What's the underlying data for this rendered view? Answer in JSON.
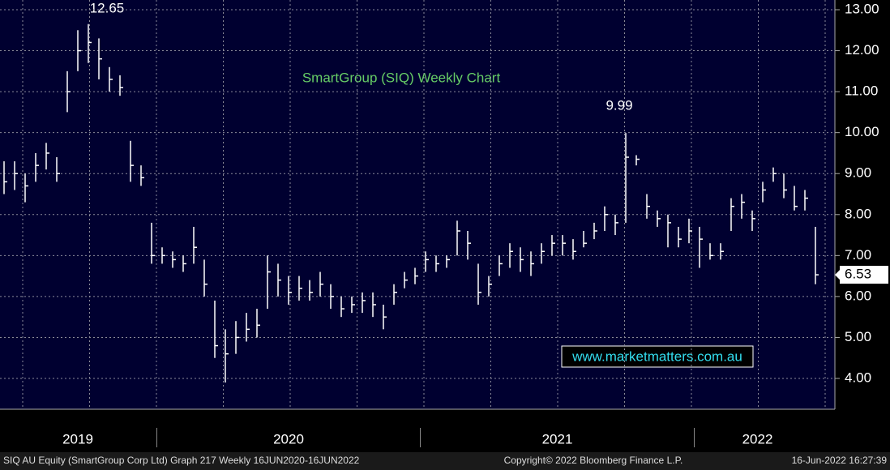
{
  "chart_data": {
    "type": "ohlc",
    "title": "SmartGroup (SIQ) Weekly Chart",
    "annotations": [
      "12.65",
      "9.99"
    ],
    "last_price": "6.53",
    "watermark": "www.marketmatters.com.au",
    "footer": [
      "SIQ AU Equity (SmartGroup Corp Ltd) Graph 217  Weekly 16JUN2020-16JUN2022",
      "Copyright© 2022 Bloomberg Finance L.P.",
      "16-Jun-2022 16:27:39"
    ],
    "categories": [
      "2019",
      "2019",
      "2019",
      "2019",
      "2019",
      "2019",
      "2019",
      "2019",
      "2019",
      "2019",
      "2019",
      "2019",
      "2019",
      "2019",
      "2019",
      "2020",
      "2020",
      "2020",
      "2020",
      "2020",
      "2020",
      "2020",
      "2020",
      "2020",
      "2020",
      "2020",
      "2020",
      "2020",
      "2020",
      "2020",
      "2020",
      "2020",
      "2020",
      "2020",
      "2020",
      "2020",
      "2020",
      "2020",
      "2020",
      "2020",
      "2021",
      "2021",
      "2021",
      "2021",
      "2021",
      "2021",
      "2021",
      "2021",
      "2021",
      "2021",
      "2021",
      "2021",
      "2021",
      "2021",
      "2021",
      "2021",
      "2021",
      "2021",
      "2021",
      "2021",
      "2021",
      "2021",
      "2021",
      "2021",
      "2021",
      "2021",
      "2022",
      "2022",
      "2022",
      "2022",
      "2022",
      "2022",
      "2022",
      "2022",
      "2022",
      "2022",
      "2022",
      "2022"
    ],
    "high": [
      9.3,
      9.3,
      9.0,
      9.5,
      9.75,
      9.4,
      11.5,
      12.5,
      12.65,
      12.3,
      11.6,
      11.4,
      9.8,
      9.2,
      7.8,
      7.2,
      7.1,
      7.0,
      7.7,
      6.9,
      5.9,
      5.2,
      5.4,
      5.6,
      5.7,
      7.0,
      6.8,
      6.5,
      6.5,
      6.4,
      6.6,
      6.3,
      6.0,
      6.0,
      6.1,
      6.1,
      5.8,
      6.3,
      6.6,
      6.7,
      7.1,
      7.0,
      7.0,
      7.85,
      7.6,
      6.8,
      6.5,
      7.0,
      7.3,
      7.2,
      7.1,
      7.3,
      7.5,
      7.5,
      7.4,
      7.6,
      7.8,
      8.2,
      8.0,
      9.99,
      9.45,
      8.5,
      8.1,
      8.0,
      7.7,
      7.9,
      7.7,
      7.3,
      7.3,
      8.4,
      8.5,
      8.1,
      8.8,
      9.15,
      9.0,
      8.7,
      8.6,
      7.7
    ],
    "low": [
      8.5,
      8.6,
      8.3,
      8.8,
      9.1,
      8.8,
      10.5,
      11.5,
      11.7,
      11.3,
      11.0,
      10.9,
      8.8,
      8.7,
      6.8,
      6.8,
      6.7,
      6.6,
      6.8,
      6.0,
      4.5,
      3.9,
      4.6,
      4.9,
      5.0,
      5.7,
      6.0,
      5.8,
      5.9,
      5.9,
      6.0,
      5.7,
      5.5,
      5.6,
      5.6,
      5.5,
      5.2,
      5.8,
      6.2,
      6.3,
      6.6,
      6.6,
      6.7,
      7.0,
      6.9,
      5.8,
      6.0,
      6.5,
      6.7,
      6.6,
      6.5,
      6.8,
      7.0,
      7.0,
      6.9,
      7.2,
      7.4,
      7.6,
      7.5,
      7.8,
      9.2,
      7.9,
      7.7,
      7.2,
      7.2,
      7.3,
      6.7,
      6.9,
      6.9,
      7.6,
      7.9,
      7.6,
      8.3,
      8.8,
      8.4,
      8.1,
      8.1,
      6.3
    ],
    "values": [
      8.8,
      9.0,
      8.7,
      9.2,
      9.5,
      9.0,
      11.0,
      12.0,
      12.2,
      11.8,
      11.3,
      11.1,
      9.2,
      8.9,
      7.0,
      7.0,
      6.9,
      6.8,
      7.2,
      6.3,
      4.8,
      4.6,
      5.0,
      5.2,
      5.3,
      6.6,
      6.4,
      6.1,
      6.2,
      6.1,
      6.3,
      6.0,
      5.7,
      5.8,
      5.9,
      5.8,
      5.5,
      6.1,
      6.4,
      6.5,
      6.9,
      6.8,
      6.9,
      7.6,
      7.3,
      6.1,
      6.3,
      6.8,
      7.1,
      6.9,
      6.8,
      7.1,
      7.3,
      7.3,
      7.1,
      7.3,
      7.6,
      8.0,
      7.8,
      9.4,
      9.35,
      8.2,
      7.9,
      7.8,
      7.4,
      7.6,
      7.4,
      7.0,
      7.1,
      8.2,
      8.3,
      7.9,
      8.6,
      9.0,
      8.6,
      8.2,
      8.4,
      6.53
    ],
    "color": "#ffffff",
    "ylim": [
      3.6,
      13.2
    ],
    "yticks": [
      {
        "value": 4,
        "label": "4.00"
      },
      {
        "value": 5,
        "label": "5.00"
      },
      {
        "value": 6,
        "label": "6.00"
      },
      {
        "value": 7,
        "label": "7.00"
      },
      {
        "value": 8,
        "label": "8.00"
      },
      {
        "value": 9,
        "label": "9.00"
      },
      {
        "value": 10,
        "label": "10.00"
      },
      {
        "value": 11,
        "label": "11.00"
      },
      {
        "value": 12,
        "label": "12.00"
      },
      {
        "value": 13,
        "label": "13.00"
      }
    ],
    "grid": true
  }
}
